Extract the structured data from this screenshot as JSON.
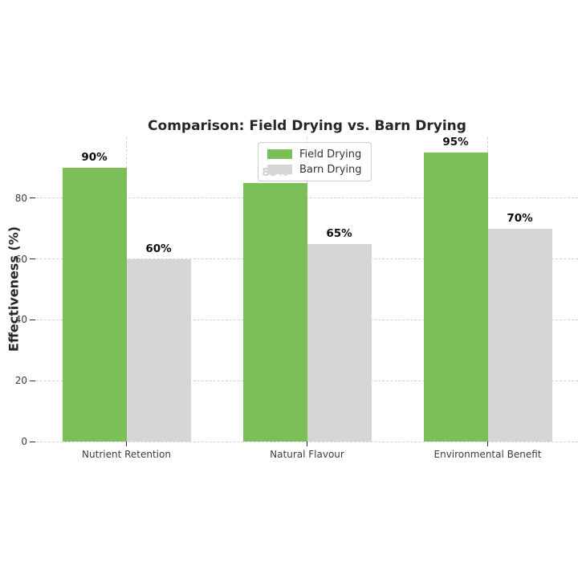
{
  "chart_data": {
    "type": "bar",
    "title": "Comparison: Field Drying vs. Barn Drying",
    "xlabel": "",
    "ylabel": "Effectiveness (%)",
    "categories": [
      "Nutrient Retention",
      "Natural Flavour",
      "Environmental Benefit"
    ],
    "series": [
      {
        "name": "Field Drying",
        "color": "#7cbe58",
        "values": [
          90,
          85,
          95
        ],
        "value_labels": [
          "90%",
          "85%",
          "95%"
        ]
      },
      {
        "name": "Barn Drying",
        "color": "#d6d6d6",
        "values": [
          60,
          65,
          70
        ],
        "value_labels": [
          "60%",
          "65%",
          "70%"
        ]
      }
    ],
    "yticks": [
      0,
      20,
      40,
      60,
      80
    ],
    "ylim": [
      0,
      100
    ],
    "grid": "dashed light-gray horizontal and vertical gridlines",
    "legend_position": "upper center",
    "legend_items": [
      "Field Drying",
      "Barn Drying"
    ],
    "colors": {
      "field_drying": "#7cbe58",
      "barn_drying": "#d6d6d6",
      "title_text": "#262626",
      "tick_text": "#3b3b3b",
      "grid": "#d2d2d2",
      "background": "#ffffff"
    }
  }
}
